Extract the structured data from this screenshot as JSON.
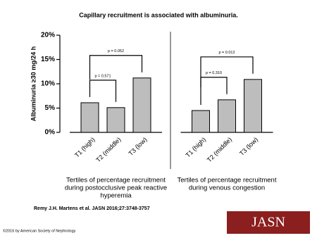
{
  "title": "Capillary recruitment is associated with albuminuria.",
  "chart_data": [
    {
      "type": "bar",
      "ylabel": "Albuminuria ≥30 mg/24 h",
      "categories": [
        "T1 (high)",
        "T2 (middle)",
        "T3 (low)"
      ],
      "values": [
        6.1,
        5.1,
        11.2
      ],
      "color": "#bdbdbd",
      "ylim": [
        0,
        20
      ],
      "yticks": [
        {
          "value": 0,
          "label": "0%"
        },
        {
          "value": 5,
          "label": "5%"
        },
        {
          "value": 10,
          "label": "10%"
        },
        {
          "value": 15,
          "label": "15%"
        },
        {
          "value": 20,
          "label": "20%"
        }
      ],
      "xlabel": [
        "Tertiles of percentage recruitment",
        "during postocclusive peak reactive",
        "hyperemia"
      ],
      "comparisons": [
        {
          "label": "p = 0.571",
          "between": [
            0,
            1
          ]
        },
        {
          "label": "p = 0.052",
          "between": [
            0,
            2
          ]
        }
      ]
    },
    {
      "type": "bar",
      "categories": [
        "T1 (high)",
        "T2 (middle)",
        "T3 (low)"
      ],
      "values": [
        4.5,
        6.7,
        10.9
      ],
      "color": "#bdbdbd",
      "ylim": [
        0,
        20
      ],
      "xlabel": [
        "Tertiles of percentage recruitment",
        "during venous congestion"
      ],
      "comparisons": [
        {
          "label": "p = 0.310",
          "between": [
            0,
            1
          ]
        },
        {
          "label": "p = 0.012",
          "between": [
            0,
            2
          ]
        }
      ]
    }
  ],
  "citation": "Remy J.H. Martens et al. JASN 2016;27:3748-3757",
  "copyright": "©2016 by American Society of Nephrology",
  "logo": "JASN"
}
